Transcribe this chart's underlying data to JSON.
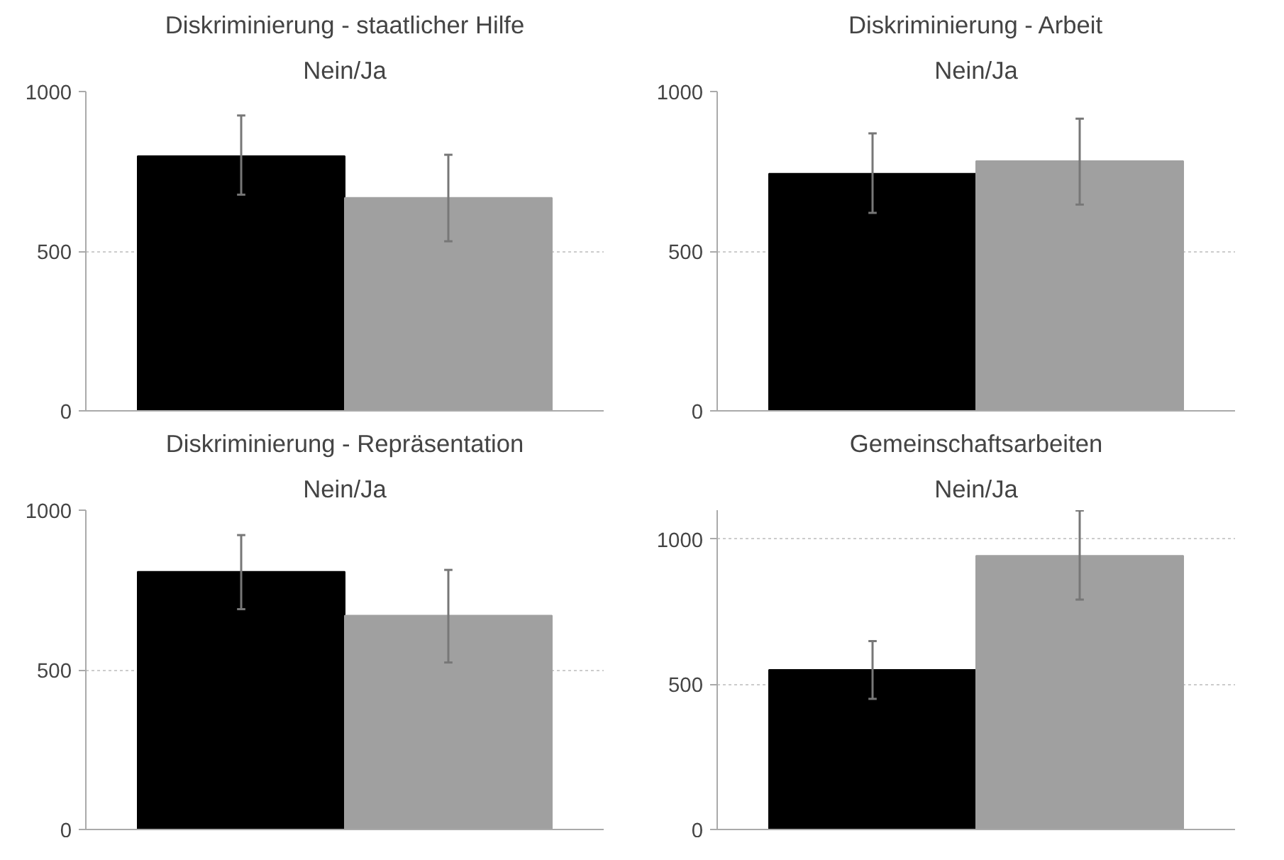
{
  "chart_data": [
    {
      "type": "bar",
      "title": "Diskriminierung - staatlicher Hilfe",
      "subtitle": "Nein/Ja",
      "categories": [
        null,
        null
      ],
      "values": [
        798,
        667
      ],
      "colors": [
        "#000000",
        "#a0a0a0"
      ],
      "errors": [
        [
          677,
          925
        ],
        [
          531,
          802
        ]
      ],
      "ylim": [
        0,
        1000
      ],
      "yticks": [
        0,
        500,
        1000
      ],
      "grid": "y",
      "tick_labels": "y"
    },
    {
      "type": "bar",
      "title": "Diskriminierung - Arbeit",
      "subtitle": "Nein/Ja",
      "categories": [
        null,
        null
      ],
      "values": [
        743,
        782
      ],
      "colors": [
        "#000000",
        "#a0a0a0"
      ],
      "errors": [
        [
          620,
          869
        ],
        [
          646,
          915
        ]
      ],
      "ylim": [
        0,
        1000
      ],
      "yticks": [
        0,
        500,
        1000
      ],
      "grid": "y",
      "tick_labels": "y"
    },
    {
      "type": "bar",
      "title": "Diskriminierung - Repräsentation",
      "subtitle": "Nein/Ja",
      "categories": [
        null,
        null
      ],
      "values": [
        807,
        670
      ],
      "colors": [
        "#000000",
        "#a0a0a0"
      ],
      "errors": [
        [
          690,
          922
        ],
        [
          523,
          813
        ]
      ],
      "ylim": [
        0,
        1000
      ],
      "yticks": [
        0,
        500,
        1000
      ],
      "grid": "y",
      "tick_labels": "y"
    },
    {
      "type": "bar",
      "title": "Gemeinschaftsarbeiten",
      "subtitle": "Nein/Ja",
      "categories": [
        null,
        null
      ],
      "values": [
        550,
        943
      ],
      "colors": [
        "#000000",
        "#a0a0a0"
      ],
      "errors": [
        [
          450,
          649
        ],
        [
          792,
          1099
        ]
      ],
      "ylim": [
        0,
        1100
      ],
      "yticks": [
        0,
        500,
        1000
      ],
      "grid": "y",
      "tick_labels": "y"
    }
  ]
}
